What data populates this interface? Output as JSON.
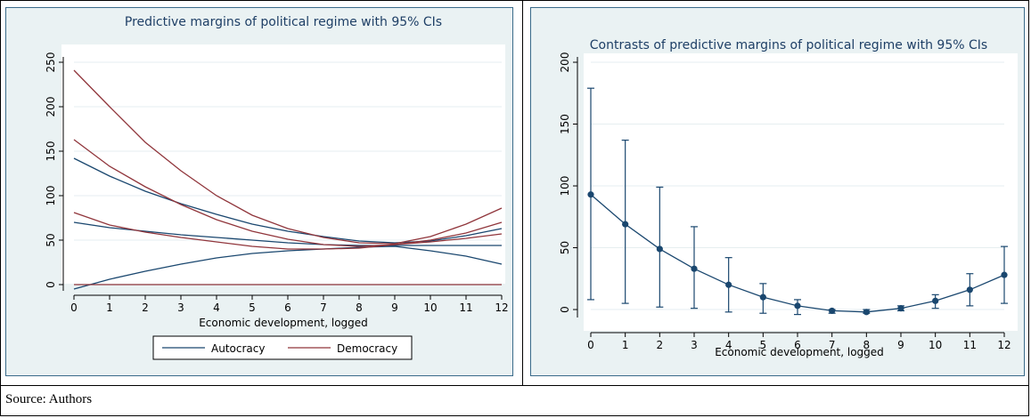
{
  "colors": {
    "autocracy": "#1a476f",
    "democracy": "#90353b",
    "plot_bg": "#eaf2f3",
    "title": "#1e3f66"
  },
  "source_note": "Source: Authors",
  "chart_data": [
    {
      "type": "line",
      "title": "Predictive margins of political regime with 95% CIs",
      "xlabel": "Economic development, logged",
      "ylabel": "",
      "x": [
        0,
        1,
        2,
        3,
        4,
        5,
        6,
        7,
        8,
        9,
        10,
        11,
        12
      ],
      "xticks": [
        "0",
        "1",
        "2",
        "3",
        "4",
        "5",
        "6",
        "7",
        "8",
        "9",
        "10",
        "11",
        "12"
      ],
      "yticks": [
        "0",
        "50",
        "100",
        "150",
        "200",
        "250"
      ],
      "ytick_values": [
        0,
        50,
        100,
        150,
        200,
        250
      ],
      "xlim": [
        0,
        12
      ],
      "ylim": [
        -5,
        250
      ],
      "series": [
        {
          "name": "Autocracy",
          "group": "autocracy",
          "role": "estimate",
          "values": [
            70,
            64,
            60,
            56,
            53,
            50,
            47,
            45,
            44,
            44,
            44,
            44,
            44
          ]
        },
        {
          "name": "Autocracy",
          "group": "autocracy",
          "role": "upper",
          "values": [
            142,
            122,
            105,
            91,
            79,
            68,
            60,
            54,
            49,
            47,
            49,
            55,
            63
          ]
        },
        {
          "name": "Autocracy",
          "group": "autocracy",
          "role": "lower",
          "values": [
            -5,
            6,
            15,
            23,
            30,
            35,
            38,
            40,
            42,
            43,
            38,
            32,
            23
          ]
        },
        {
          "name": "Democracy",
          "group": "democracy",
          "role": "estimate",
          "values": [
            163,
            133,
            110,
            90,
            73,
            60,
            51,
            45,
            43,
            45,
            50,
            58,
            70
          ]
        },
        {
          "name": "Democracy",
          "group": "democracy",
          "role": "upper",
          "values": [
            241,
            200,
            160,
            128,
            100,
            78,
            63,
            53,
            47,
            46,
            54,
            68,
            86
          ]
        },
        {
          "name": "Democracy",
          "group": "democracy",
          "role": "lower",
          "values": [
            81,
            67,
            59,
            53,
            48,
            43,
            40,
            40,
            41,
            45,
            48,
            52,
            57
          ]
        },
        {
          "name": "Democracy",
          "group": "democracy",
          "role": "reference",
          "values": [
            0,
            0,
            0,
            0,
            0,
            0,
            0,
            0,
            0,
            0,
            0,
            0,
            0
          ]
        }
      ],
      "legend": {
        "entries": [
          "Autocracy",
          "Democracy"
        ],
        "placement": "bottom"
      },
      "grid": true
    },
    {
      "type": "line",
      "title": "Contrasts of predictive margins of political regime with 95% CIs",
      "xlabel": "Economic development, logged",
      "ylabel": "",
      "x": [
        0,
        1,
        2,
        3,
        4,
        5,
        6,
        7,
        8,
        9,
        10,
        11,
        12
      ],
      "xticks": [
        "0",
        "1",
        "2",
        "3",
        "4",
        "5",
        "6",
        "7",
        "8",
        "9",
        "10",
        "11",
        "12"
      ],
      "yticks": [
        "0",
        "50",
        "100",
        "150",
        "200"
      ],
      "ytick_values": [
        0,
        50,
        100,
        150,
        200
      ],
      "xlim": [
        0,
        12
      ],
      "ylim": [
        -5,
        200
      ],
      "series": [
        {
          "name": "",
          "values": [
            93,
            69,
            49,
            33,
            20,
            10,
            3,
            -1,
            -2,
            1,
            7,
            16,
            28
          ],
          "ci_upper": [
            179,
            137,
            99,
            67,
            42,
            21,
            8,
            0,
            0,
            3,
            12,
            29,
            51
          ],
          "ci_lower": [
            8,
            5,
            2,
            1,
            -2,
            -3,
            -4,
            -3,
            -3,
            -1,
            1,
            3,
            5
          ]
        }
      ],
      "grid": true
    }
  ]
}
